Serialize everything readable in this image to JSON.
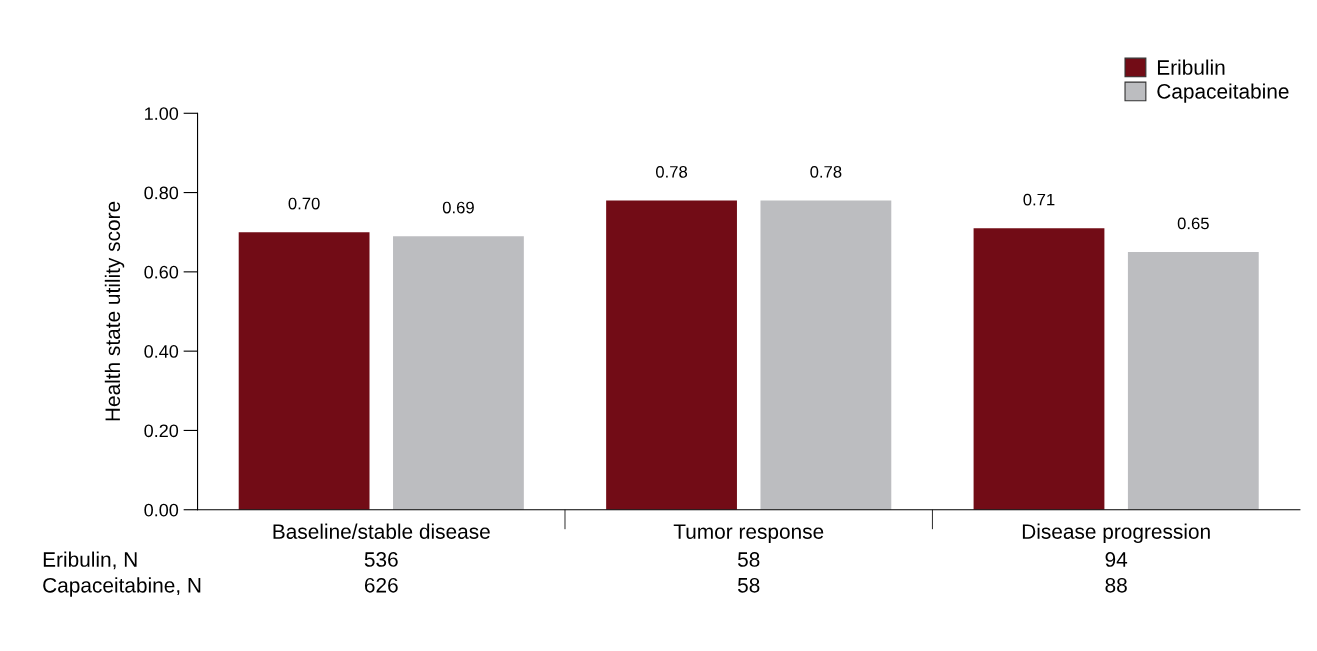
{
  "chart_data": {
    "type": "bar",
    "ylabel": "Health state utility score",
    "categories": [
      "Baseline/stable disease",
      "Tumor response",
      "Disease progression"
    ],
    "series": [
      {
        "name": "Eribulin",
        "color": "#720c16",
        "values": [
          0.7,
          0.78,
          0.71
        ],
        "value_labels": [
          "0.70",
          "0.78",
          "0.71"
        ]
      },
      {
        "name": "Capaceitabine",
        "color": "#bcbdc0",
        "values": [
          0.69,
          0.78,
          0.65
        ],
        "value_labels": [
          "0.69",
          "0.78",
          "0.65"
        ]
      }
    ],
    "ylim": [
      0,
      1
    ],
    "yticks": [
      {
        "value": 0,
        "label": "0.00"
      },
      {
        "value": 0.2,
        "label": "0.20"
      },
      {
        "value": 0.4,
        "label": "0.40"
      },
      {
        "value": 0.6,
        "label": "0.60"
      },
      {
        "value": 0.8,
        "label": "0.80"
      },
      {
        "value": 1,
        "label": "1.00"
      }
    ],
    "grid": false,
    "legend": "top right",
    "annotations": [
      "Eribulin, N",
      "536",
      "58",
      "94",
      "Capaceitabine, N",
      "626",
      "58",
      "88"
    ]
  }
}
